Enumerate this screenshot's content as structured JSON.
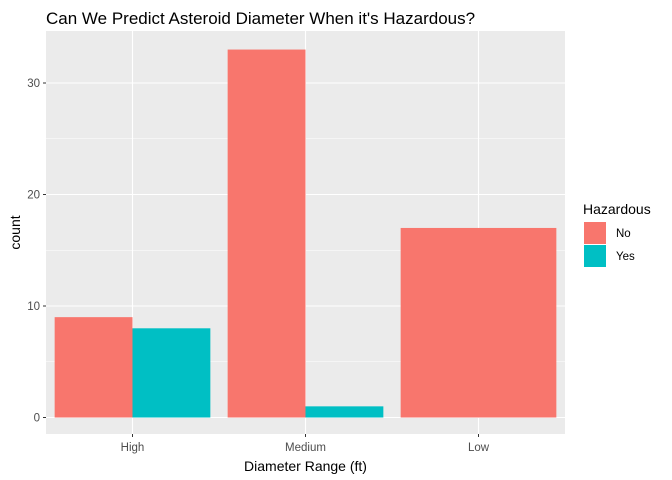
{
  "chart_data": {
    "type": "bar",
    "title": "Can We Predict Asteroid Diameter When it's Hazardous?",
    "xlabel": "Diameter Range (ft)",
    "ylabel": "count",
    "categories": [
      "High",
      "Medium",
      "Low"
    ],
    "series": [
      {
        "name": "No",
        "values": [
          9,
          33,
          17
        ],
        "color": "#F8766D"
      },
      {
        "name": "Yes",
        "values": [
          8,
          1,
          null
        ],
        "color": "#00BFC4"
      }
    ],
    "ylim": [
      0,
      34.65
    ],
    "yticks": [
      0,
      10,
      20,
      30
    ],
    "grid": true,
    "legend": {
      "title": "Hazardous",
      "position": "right"
    }
  }
}
